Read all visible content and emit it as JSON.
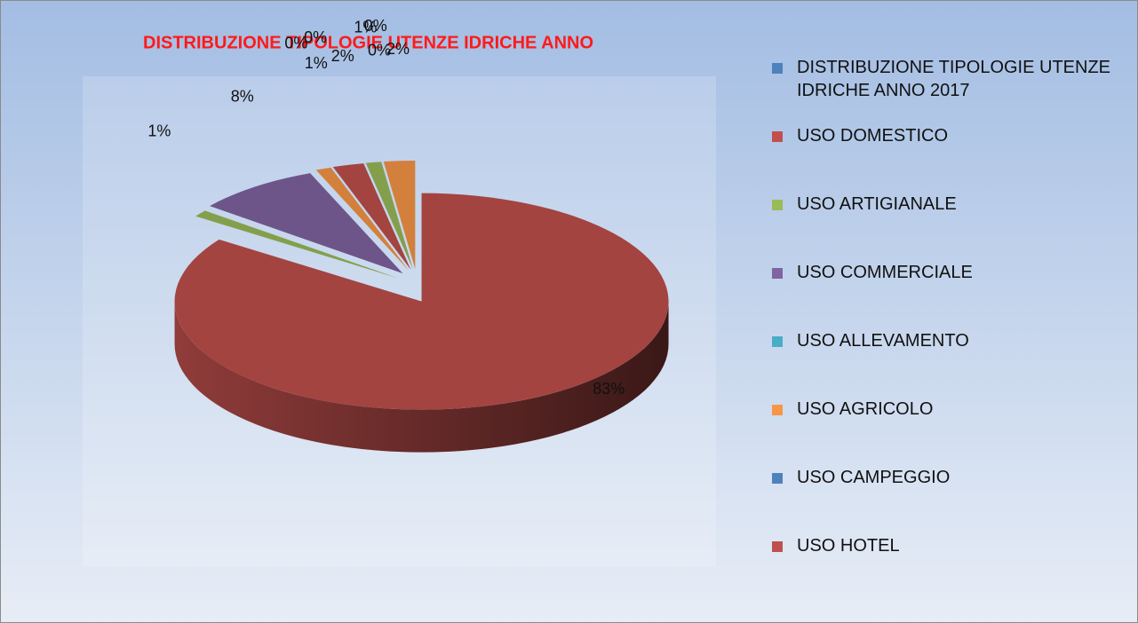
{
  "chart_data": {
    "type": "pie3d",
    "title": "DISTRIBUZIONE TIPOLOGIE UTENZE IDRICHE ANNO",
    "categories": [
      "DISTRIBUZIONE TIPOLOGIE UTENZE IDRICHE ANNO 2017",
      "USO DOMESTICO",
      "USO ARTIGIANALE",
      "USO COMMERCIALE",
      "USO ALLEVAMENTO",
      "USO AGRICOLO",
      "USO CAMPEGGIO",
      "USO HOTEL",
      null,
      null,
      null,
      null
    ],
    "values": [
      null,
      83,
      1,
      8,
      0,
      1,
      0,
      2,
      1,
      0,
      0,
      2
    ],
    "value_labels": [
      null,
      "83%",
      "1%",
      "8%",
      "0%",
      "1%",
      "0%",
      "2%",
      "1%",
      "0%",
      "0%",
      "2%"
    ],
    "colors": [
      "#4f81bd",
      "#c0504d",
      "#9bbb59",
      "#8064a2",
      "#4bacc6",
      "#f79646",
      "#4f81bd",
      "#c0504d",
      "#9bbb59",
      "#8064a2",
      "#4bacc6",
      "#f79646"
    ],
    "legend": "right"
  }
}
